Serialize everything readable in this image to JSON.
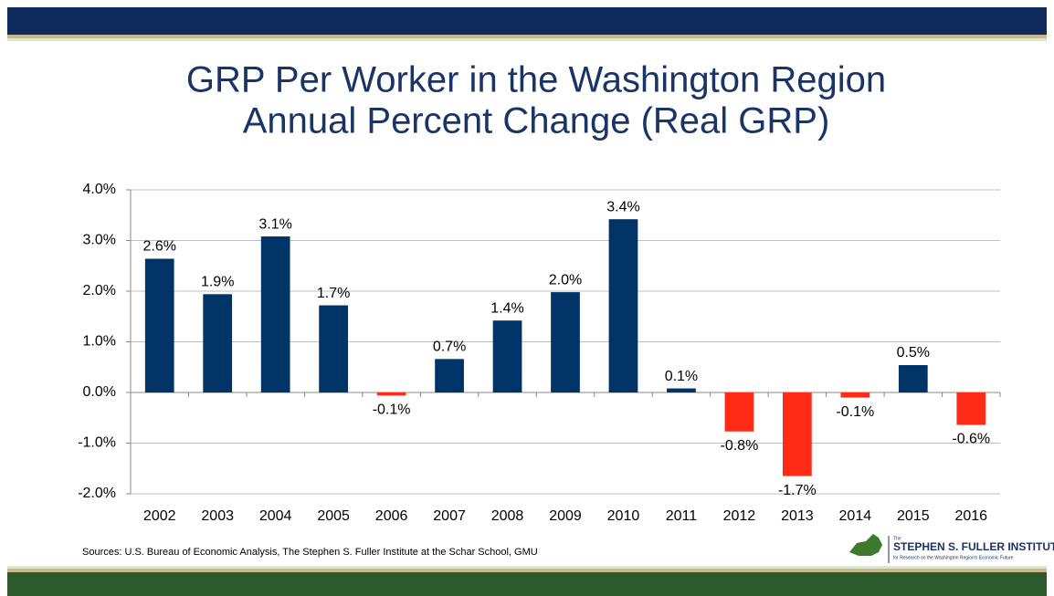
{
  "chart_data": {
    "type": "bar",
    "title": [
      "GRP Per Worker in the Washington Region",
      "Annual Percent Change (Real GRP)"
    ],
    "categories": [
      "2002",
      "2003",
      "2004",
      "2005",
      "2006",
      "2007",
      "2008",
      "2009",
      "2010",
      "2011",
      "2012",
      "2013",
      "2014",
      "2015",
      "2016"
    ],
    "values": [
      2.64,
      1.94,
      3.08,
      1.72,
      -0.06,
      0.66,
      1.42,
      1.98,
      3.42,
      0.08,
      -0.77,
      -1.65,
      -0.1,
      0.54,
      -0.64
    ],
    "value_labels": [
      "2.6%",
      "1.9%",
      "3.1%",
      "1.7%",
      "-0.1%",
      "0.7%",
      "1.4%",
      "2.0%",
      "3.4%",
      "0.1%",
      "-0.8%",
      "-1.7%",
      "-0.1%",
      "0.5%",
      "-0.6%"
    ],
    "color": "#003466",
    "negative_color": "#ff2b17",
    "ylim": [
      -2,
      4
    ],
    "yticks": [
      {
        "value": -2,
        "label": "-2.0%"
      },
      {
        "value": -1,
        "label": "-1.0%"
      },
      {
        "value": 0,
        "label": "0.0%"
      },
      {
        "value": 1,
        "label": "1.0%"
      },
      {
        "value": 2,
        "label": "2.0%"
      },
      {
        "value": 3,
        "label": "3.0%"
      },
      {
        "value": 4,
        "label": "4.0%"
      }
    ],
    "grid": true,
    "source": "Sources: U.S. Bureau of Economic Analysis, The Stephen S. Fuller Institute at the Schar School, GMU"
  },
  "logo": {
    "small": "The",
    "name": "STEPHEN S. FULLER INSTITUTE",
    "tagline": "for Research on the Washington Region's Economic Future"
  }
}
